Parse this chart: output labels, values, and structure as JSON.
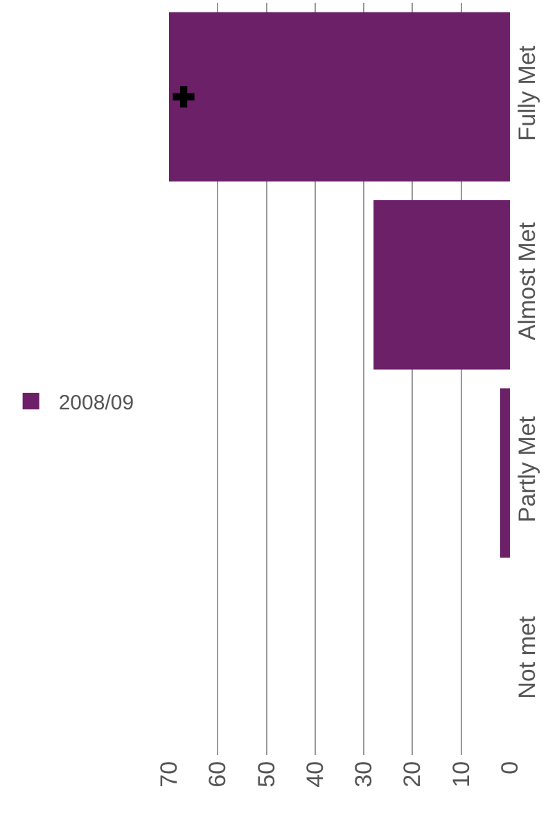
{
  "chart_data": {
    "type": "bar",
    "orientation": "horizontal",
    "categories": [
      "Fully Met",
      "Almost Met",
      "Partly Met",
      "Not met"
    ],
    "series": [
      {
        "name": "2008/09",
        "color": "#6b2068",
        "values": [
          70,
          28,
          2,
          0
        ]
      },
      {
        "type": "scatter",
        "x": [
          "Fully Met"
        ],
        "color": "#000000",
        "marker": "cross",
        "values": [
          67
        ]
      }
    ],
    "xlim": [
      70,
      0
    ],
    "xticks": [
      0,
      10,
      20,
      30,
      40,
      50,
      60,
      70
    ],
    "grid": "x",
    "legend": "left"
  }
}
